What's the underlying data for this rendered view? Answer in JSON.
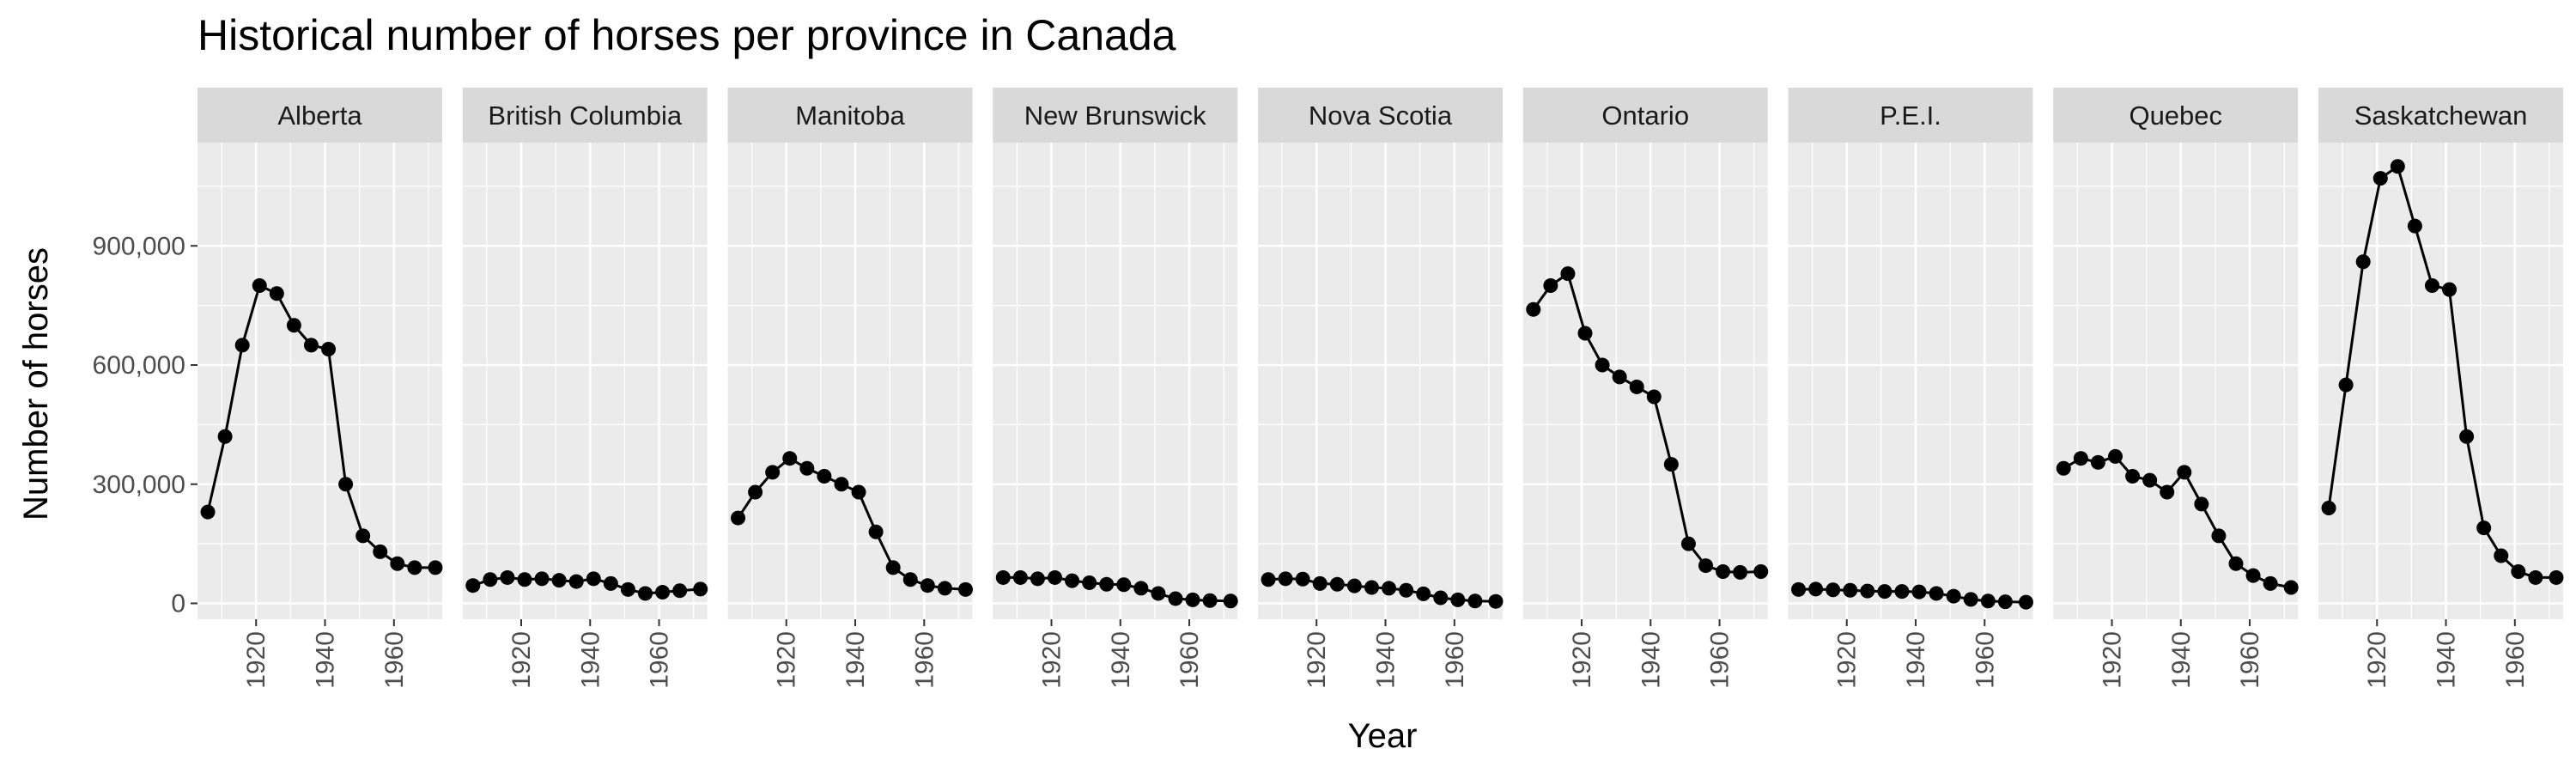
{
  "chart_data": {
    "type": "line",
    "subtype": "faceted line with points",
    "title": "Historical number of horses per province in Canada",
    "xlabel": "Year",
    "ylabel": "Number of horses",
    "xlim": [
      1903,
      1974
    ],
    "ylim": [
      -40000,
      1160000
    ],
    "x_ticks": [
      1920,
      1940,
      1960
    ],
    "x_tick_labels": [
      "1920",
      "1940",
      "1960"
    ],
    "y_ticks": [
      0,
      300000,
      600000,
      900000
    ],
    "y_tick_labels": [
      "0",
      "300,000",
      "600,000",
      "900,000"
    ],
    "grid": true,
    "legend": "none",
    "colors": {
      "panel_background": "#ebebeb",
      "grid_line": "#ffffff",
      "strip_background": "#d9d9d9",
      "series": "#000000"
    },
    "x": [
      1906,
      1911,
      1916,
      1921,
      1926,
      1931,
      1936,
      1941,
      1946,
      1951,
      1956,
      1961,
      1966,
      1972
    ],
    "facets": [
      {
        "name": "Alberta",
        "values": [
          230000,
          420000,
          650000,
          800000,
          780000,
          700000,
          650000,
          640000,
          300000,
          170000,
          130000,
          100000,
          90000,
          90000
        ]
      },
      {
        "name": "British Columbia",
        "values": [
          45000,
          60000,
          65000,
          60000,
          62000,
          58000,
          55000,
          62000,
          50000,
          35000,
          25000,
          28000,
          32000,
          36000
        ]
      },
      {
        "name": "Manitoba",
        "values": [
          215000,
          280000,
          330000,
          365000,
          340000,
          320000,
          300000,
          280000,
          180000,
          90000,
          60000,
          45000,
          38000,
          35000
        ]
      },
      {
        "name": "New Brunswick",
        "values": [
          65000,
          65000,
          62000,
          65000,
          57000,
          52000,
          48000,
          47000,
          38000,
          25000,
          12000,
          9000,
          7000,
          6000
        ]
      },
      {
        "name": "Nova Scotia",
        "values": [
          60000,
          62000,
          61000,
          50000,
          48000,
          44000,
          40000,
          38000,
          33000,
          24000,
          14000,
          9000,
          6000,
          5000
        ]
      },
      {
        "name": "Ontario",
        "values": [
          740000,
          800000,
          830000,
          680000,
          600000,
          570000,
          545000,
          520000,
          350000,
          150000,
          95000,
          80000,
          78000,
          80000
        ]
      },
      {
        "name": "P.E.I.",
        "values": [
          35000,
          36000,
          34000,
          33000,
          31000,
          30000,
          30000,
          29000,
          25000,
          18000,
          10000,
          6000,
          4000,
          3000
        ]
      },
      {
        "name": "Quebec",
        "values": [
          340000,
          365000,
          355000,
          370000,
          320000,
          310000,
          280000,
          330000,
          250000,
          170000,
          100000,
          70000,
          50000,
          40000
        ]
      },
      {
        "name": "Saskatchewan",
        "values": [
          240000,
          550000,
          860000,
          1070000,
          1100000,
          950000,
          800000,
          790000,
          420000,
          190000,
          120000,
          80000,
          65000,
          65000
        ]
      }
    ]
  }
}
